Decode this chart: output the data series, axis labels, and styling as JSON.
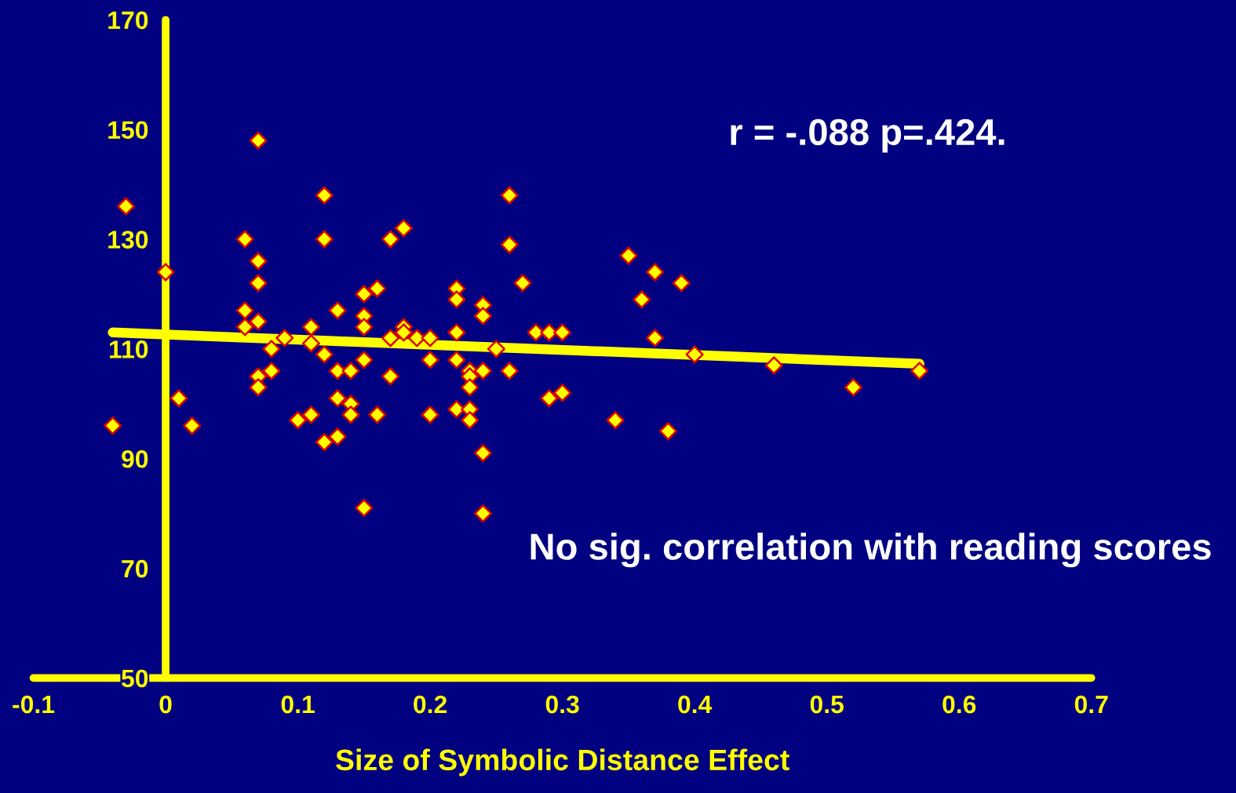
{
  "chart_data": {
    "type": "scatter",
    "xlabel": "Size of Symbolic Distance Effect",
    "annotations": [
      "r = -.088 p=.424.",
      "No sig. correlation with reading scores"
    ],
    "xlim": [
      -0.1,
      0.7
    ],
    "xticks": [
      -0.1,
      0,
      0.1,
      0.2,
      0.3,
      0.4,
      0.5,
      0.6,
      0.7
    ],
    "ylim": [
      50,
      170
    ],
    "yticks": [
      50,
      70,
      90,
      110,
      130,
      150,
      170
    ],
    "grid": false,
    "legend": false,
    "series": [
      {
        "marker": "diamond",
        "color": "#ffff00",
        "x": [
          -0.04,
          -0.03,
          0.0,
          0.01,
          0.02,
          0.06,
          0.06,
          0.06,
          0.07,
          0.07,
          0.07,
          0.07,
          0.07,
          0.07,
          0.08,
          0.08,
          0.09,
          0.1,
          0.11,
          0.11,
          0.11,
          0.12,
          0.12,
          0.12,
          0.12,
          0.13,
          0.13,
          0.13,
          0.13,
          0.14,
          0.14,
          0.14,
          0.15,
          0.15,
          0.15,
          0.15,
          0.15,
          0.16,
          0.16,
          0.17,
          0.17,
          0.17,
          0.18,
          0.18,
          0.18,
          0.19,
          0.2,
          0.2,
          0.2,
          0.22,
          0.22,
          0.22,
          0.22,
          0.22,
          0.23,
          0.23,
          0.23,
          0.23,
          0.23,
          0.24,
          0.24,
          0.24,
          0.24,
          0.24,
          0.25,
          0.26,
          0.26,
          0.26,
          0.27,
          0.28,
          0.29,
          0.29,
          0.3,
          0.3,
          0.34,
          0.35,
          0.36,
          0.37,
          0.37,
          0.38,
          0.39,
          0.4,
          0.46,
          0.52,
          0.57
        ],
        "values": [
          96,
          136,
          124,
          101,
          96,
          130,
          117,
          114,
          148,
          126,
          122,
          115,
          105,
          103,
          110,
          106,
          112,
          97,
          114,
          111,
          98,
          138,
          130,
          109,
          93,
          117,
          106,
          101,
          94,
          106,
          100,
          98,
          120,
          116,
          114,
          108,
          81,
          121,
          98,
          130,
          112,
          105,
          132,
          114,
          113,
          112,
          112,
          108,
          98,
          121,
          119,
          113,
          108,
          99,
          106,
          105,
          103,
          99,
          97,
          118,
          116,
          106,
          91,
          80,
          110,
          138,
          129,
          106,
          122,
          113,
          113,
          101,
          113,
          102,
          97,
          127,
          119,
          124,
          112,
          95,
          122,
          109,
          107,
          103,
          106
        ]
      },
      {
        "type": "line",
        "color": "#ffff00",
        "x": [
          -0.04,
          0.57
        ],
        "values": [
          113,
          107.3
        ]
      }
    ]
  }
}
